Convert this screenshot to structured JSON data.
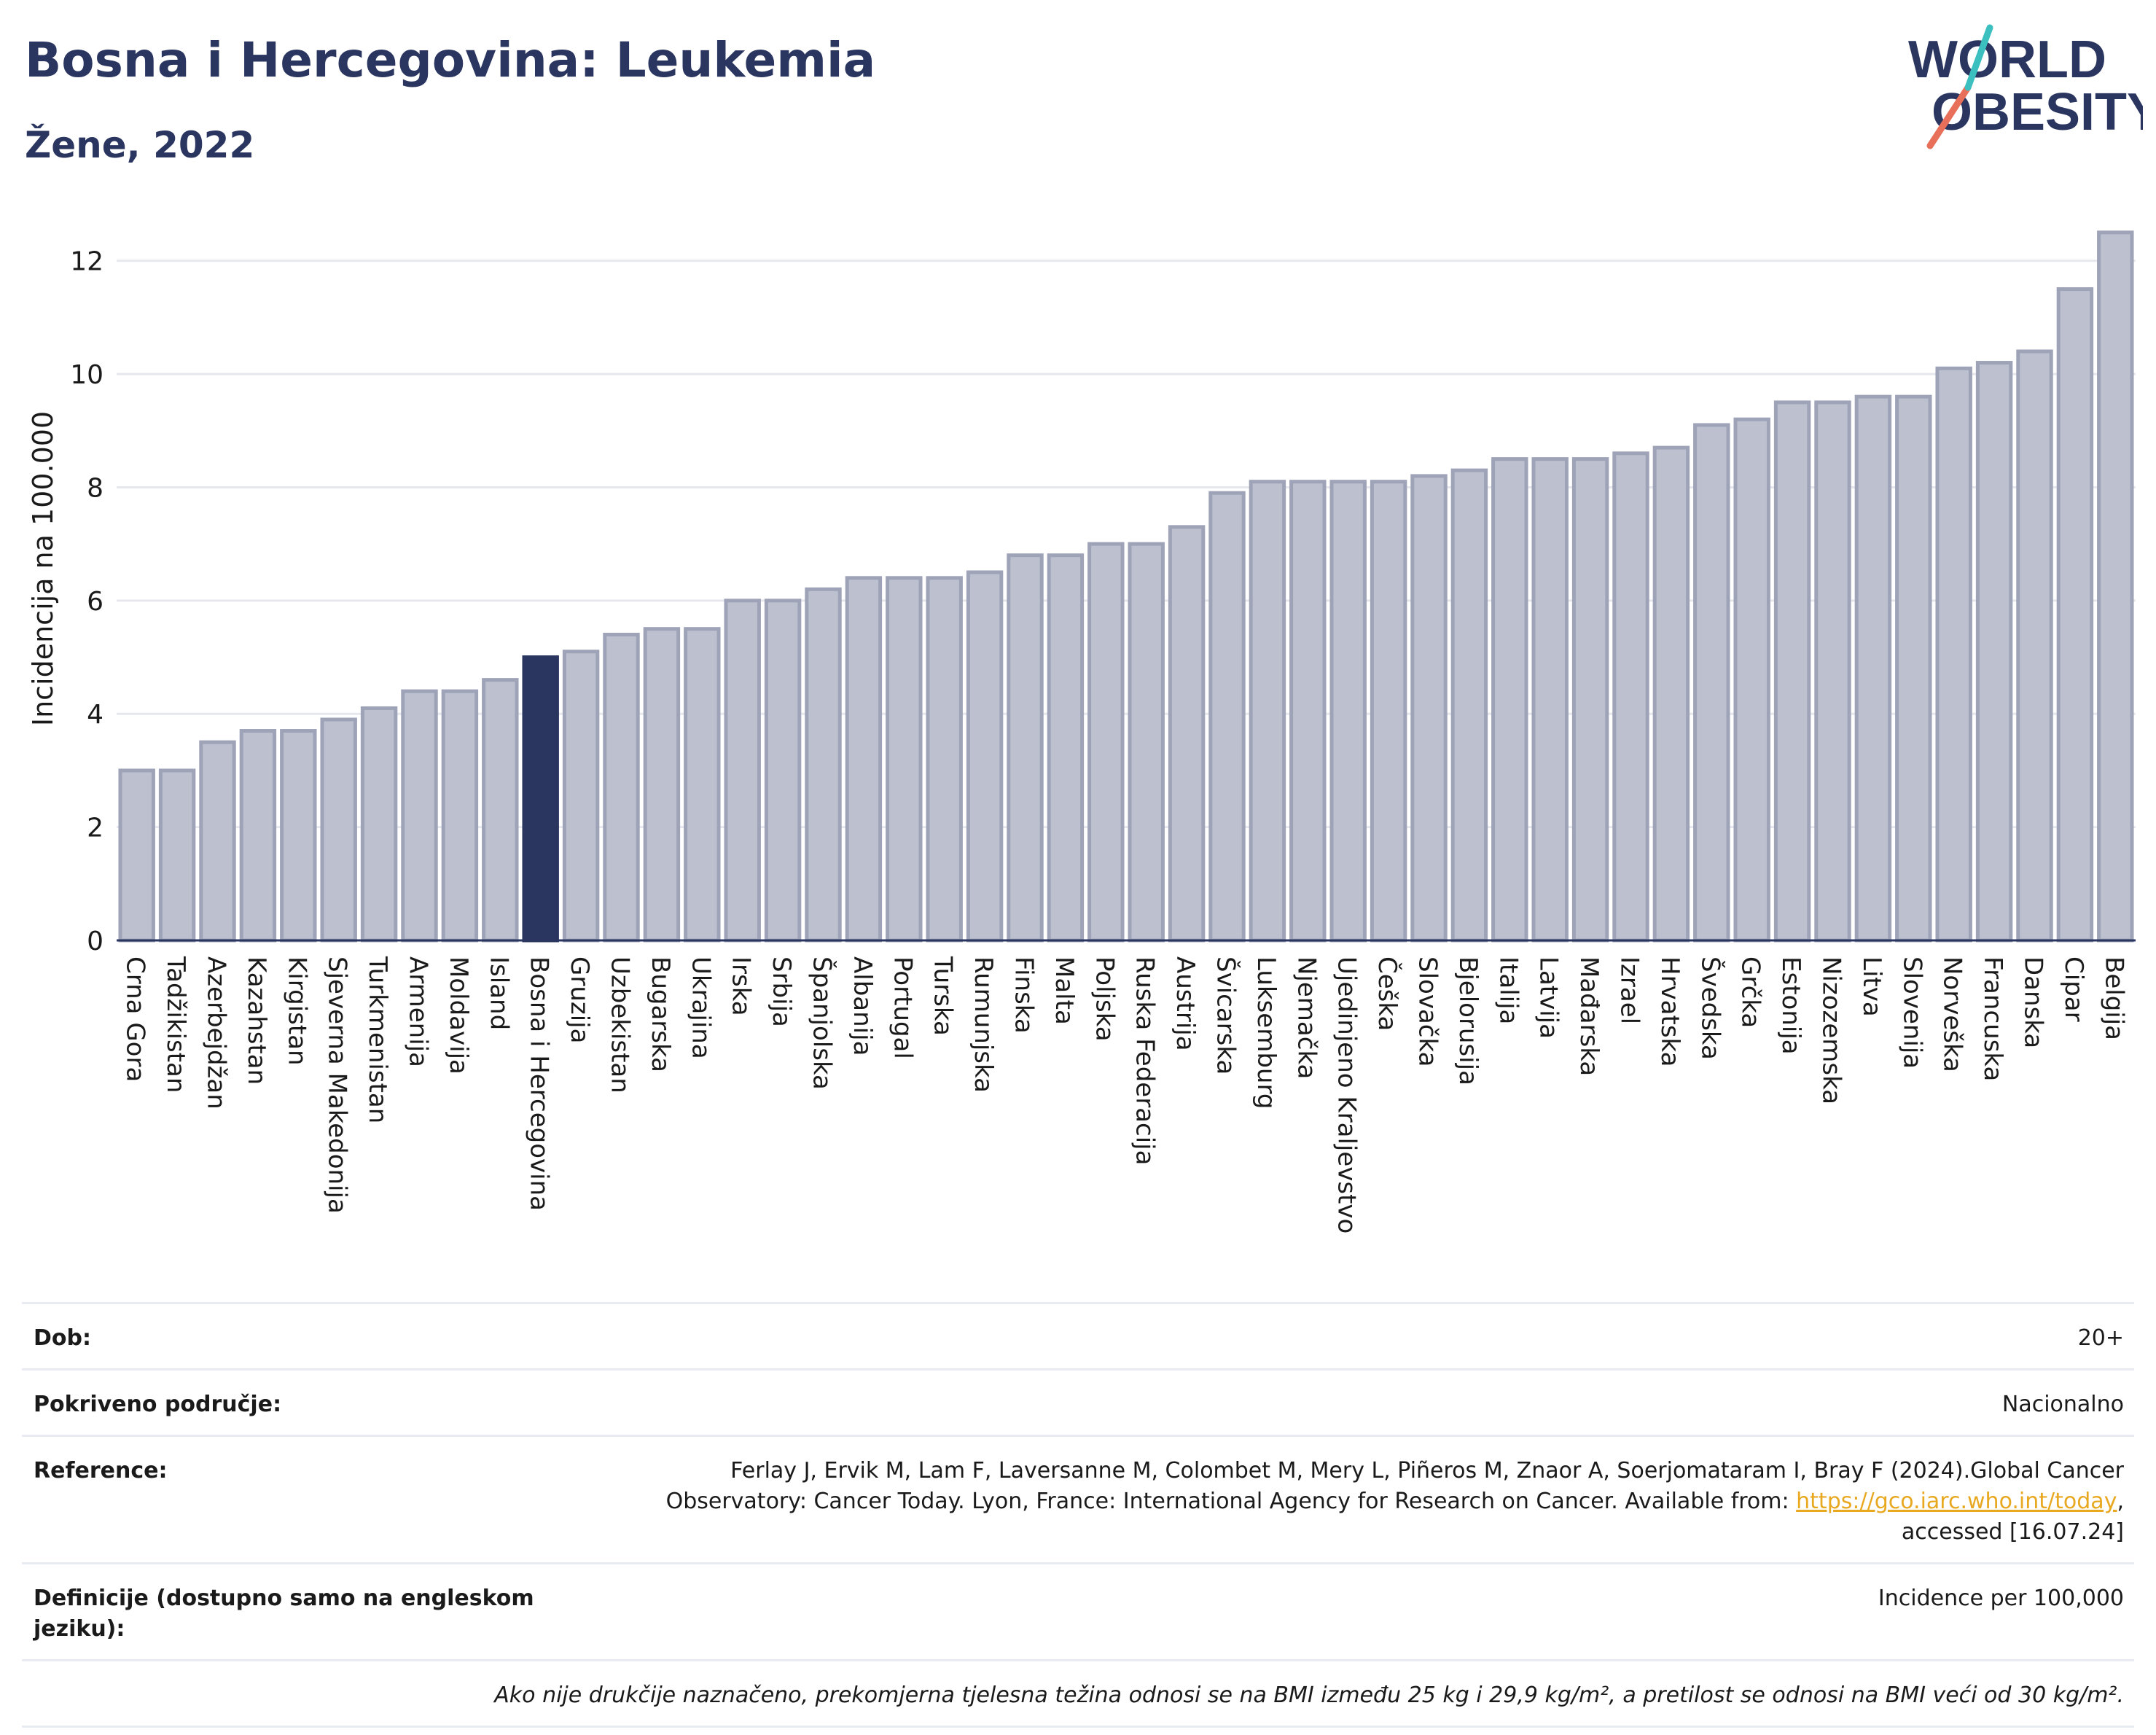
{
  "header": {
    "title": "Bosna i Hercegovina: Leukemia",
    "subtitle": "Žene, 2022"
  },
  "logo": {
    "line1": "WORLD",
    "line2": "OBESITY",
    "text_color": "#2a3560",
    "slash_colors": [
      "#e8705a",
      "#3bbfbf"
    ]
  },
  "colors": {
    "bar_default": "#bcc0cf",
    "bar_outline": "#9ea3b8",
    "bar_highlight": "#2a3560",
    "grid": "#e6e8ee",
    "link": "#e8a820"
  },
  "chart_data": {
    "type": "bar",
    "title": "",
    "xlabel": "",
    "ylabel": "Incidencija na 100.000",
    "ylim": [
      0,
      13
    ],
    "yticks": [
      0,
      2,
      4,
      6,
      8,
      10,
      12
    ],
    "grid": true,
    "highlight": "Bosna i Hercegovina",
    "categories": [
      "Crna Gora",
      "Tadžikistan",
      "Azerbejdžan",
      "Kazahstan",
      "Kirgistan",
      "Sjeverna Makedonija",
      "Turkmenistan",
      "Armenija",
      "Moldavija",
      "Island",
      "Bosna i Hercegovina",
      "Gruzija",
      "Uzbekistan",
      "Bugarska",
      "Ukrajina",
      "Irska",
      "Srbija",
      "Španjolska",
      "Albanija",
      "Portugal",
      "Turska",
      "Rumunjska",
      "Finska",
      "Malta",
      "Poljska",
      "Ruska Federacija",
      "Austrija",
      "Švicarska",
      "Luksemburg",
      "Njemačka",
      "Ujedinjeno Kraljevstvo",
      "Češka",
      "Slovačka",
      "Bjelorusija",
      "Italija",
      "Latvija",
      "Mađarska",
      "Izrael",
      "Hrvatska",
      "Švedska",
      "Grčka",
      "Estonija",
      "Nizozemska",
      "Litva",
      "Slovenija",
      "Norveška",
      "Francuska",
      "Danska",
      "Cipar",
      "Belgija"
    ],
    "values": [
      3.0,
      3.0,
      3.5,
      3.7,
      3.7,
      3.9,
      4.1,
      4.4,
      4.4,
      4.6,
      5.0,
      5.1,
      5.4,
      5.5,
      5.5,
      6.0,
      6.0,
      6.2,
      6.4,
      6.4,
      6.4,
      6.5,
      6.8,
      6.8,
      7.0,
      7.0,
      7.3,
      7.9,
      8.1,
      8.1,
      8.1,
      8.1,
      8.2,
      8.3,
      8.5,
      8.5,
      8.5,
      8.6,
      8.7,
      9.1,
      9.2,
      9.5,
      9.5,
      9.6,
      9.6,
      10.1,
      10.2,
      10.4,
      11.5,
      12.5
    ]
  },
  "meta": {
    "age_label": "Dob:",
    "age_value": "20+",
    "coverage_label": "Pokriveno područje:",
    "coverage_value": "Nacionalno",
    "reference_label": "Reference:",
    "reference_text": "Ferlay J, Ervik M, Lam F, Laversanne M, Colombet M, Mery L, Piñeros M, Znaor A, Soerjomataram I, Bray F (2024).Global Cancer Observatory: Cancer Today. Lyon, France: International Agency for Research on Cancer. Available from: ",
    "reference_link": "https://gco.iarc.who.int/today",
    "reference_suffix": ", accessed [16.07.24]",
    "definitions_label": "Definicije (dostupno samo na engleskom jeziku):",
    "definitions_value": "Incidence per 100,000",
    "note": "Ako nije drukčije naznačeno, prekomjerna tjelesna težina odnosi se na BMI između 25 kg i 29,9 kg/m², a pretilost se odnosi na BMI veći od 30 kg/m²."
  }
}
